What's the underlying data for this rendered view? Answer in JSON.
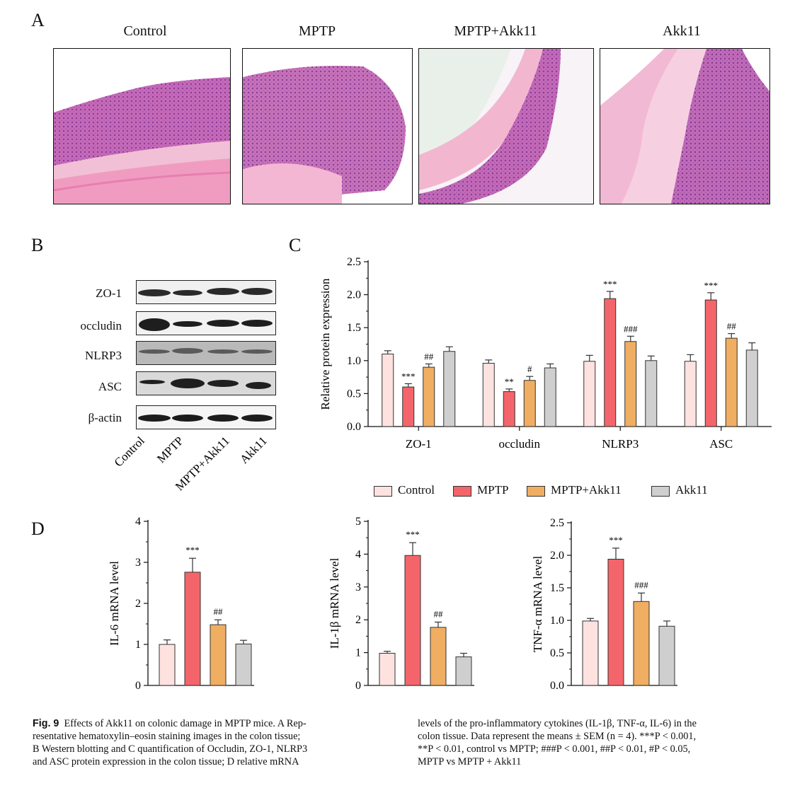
{
  "panels": {
    "a": "A",
    "b": "B",
    "c": "C",
    "d": "D"
  },
  "groups": [
    "Control",
    "MPTP",
    "MPTP+Akk11",
    "Akk11"
  ],
  "group_colors": [
    "#fde2e0",
    "#f4656b",
    "#f0ae62",
    "#cfcfcf"
  ],
  "histology_labels": [
    "Control",
    "MPTP",
    "MPTP+Akk11",
    "Akk11"
  ],
  "western": {
    "bands": [
      "ZO-1",
      "occludin",
      "NLRP3",
      "ASC",
      "β-actin"
    ],
    "lanes": [
      "Control",
      "MPTP",
      "MPTP+Akk11",
      "Akk11"
    ]
  },
  "legend": [
    "Control",
    "MPTP",
    "MPTP+Akk11",
    "Akk11"
  ],
  "chart_data": [
    {
      "id": "C",
      "type": "bar",
      "categories": [
        "ZO-1",
        "occludin",
        "NLRP3",
        "ASC"
      ],
      "series": [
        {
          "name": "Control",
          "values": [
            1.1,
            0.96,
            0.99,
            0.99
          ],
          "errors": [
            0.05,
            0.05,
            0.09,
            0.1
          ]
        },
        {
          "name": "MPTP",
          "values": [
            0.6,
            0.53,
            1.94,
            1.92
          ],
          "errors": [
            0.05,
            0.04,
            0.11,
            0.11
          ]
        },
        {
          "name": "MPTP+Akk11",
          "values": [
            0.9,
            0.7,
            1.29,
            1.34
          ],
          "errors": [
            0.05,
            0.06,
            0.08,
            0.07
          ]
        },
        {
          "name": "Akk11",
          "values": [
            1.14,
            0.89,
            1.0,
            1.16
          ],
          "errors": [
            0.07,
            0.06,
            0.07,
            0.11
          ]
        }
      ],
      "annotations": [
        {
          "category": "ZO-1",
          "series": "MPTP",
          "text": "***"
        },
        {
          "category": "ZO-1",
          "series": "MPTP+Akk11",
          "text": "##"
        },
        {
          "category": "occludin",
          "series": "MPTP",
          "text": "**"
        },
        {
          "category": "occludin",
          "series": "MPTP+Akk11",
          "text": "#"
        },
        {
          "category": "NLRP3",
          "series": "MPTP",
          "text": "***"
        },
        {
          "category": "NLRP3",
          "series": "MPTP+Akk11",
          "text": "###"
        },
        {
          "category": "ASC",
          "series": "MPTP",
          "text": "***"
        },
        {
          "category": "ASC",
          "series": "MPTP+Akk11",
          "text": "##"
        }
      ],
      "ylabel": "Relative protein expression",
      "ylim": [
        0,
        2.5
      ],
      "yticks": [
        "0.0",
        "0.5",
        "1.0",
        "1.5",
        "2.0",
        "2.5"
      ],
      "legend_position": "bottom"
    },
    {
      "id": "D1",
      "type": "bar",
      "categories": [
        "Control",
        "MPTP",
        "MPTP+Akk11",
        "Akk11"
      ],
      "values": [
        1.0,
        2.76,
        1.48,
        1.01
      ],
      "errors": [
        0.11,
        0.34,
        0.12,
        0.09
      ],
      "annotations": [
        {
          "index": 1,
          "text": "***"
        },
        {
          "index": 2,
          "text": "##"
        }
      ],
      "ylabel": "IL-6 mRNA level",
      "ylim": [
        0,
        4
      ],
      "yticks": [
        "0",
        "1",
        "2",
        "3",
        "4"
      ]
    },
    {
      "id": "D2",
      "type": "bar",
      "categories": [
        "Control",
        "MPTP",
        "MPTP+Akk11",
        "Akk11"
      ],
      "values": [
        0.98,
        3.96,
        1.77,
        0.87
      ],
      "errors": [
        0.06,
        0.39,
        0.16,
        0.11
      ],
      "annotations": [
        {
          "index": 1,
          "text": "***"
        },
        {
          "index": 2,
          "text": "##"
        }
      ],
      "ylabel": "IL-1β mRNA level",
      "ylim": [
        0,
        5
      ],
      "yticks": [
        "0",
        "1",
        "2",
        "3",
        "4",
        "5"
      ]
    },
    {
      "id": "D3",
      "type": "bar",
      "categories": [
        "Control",
        "MPTP",
        "MPTP+Akk11",
        "Akk11"
      ],
      "values": [
        0.99,
        1.94,
        1.29,
        0.91
      ],
      "errors": [
        0.04,
        0.17,
        0.13,
        0.08
      ],
      "annotations": [
        {
          "index": 1,
          "text": "***"
        },
        {
          "index": 2,
          "text": "###"
        }
      ],
      "ylabel": "TNF-α mRNA level",
      "ylim": [
        0,
        2.5
      ],
      "yticks": [
        "0.0",
        "0.5",
        "1.0",
        "1.5",
        "2.0",
        "2.5"
      ]
    }
  ],
  "caption": {
    "fig_label": "Fig. 9",
    "left_lines": [
      "Effects of Akk11 on colonic damage in MPTP mice. A Rep-",
      "resentative hematoxylin–eosin staining images in the colon tissue;",
      "B Western blotting and C quantification of Occludin, ZO-1, NLRP3",
      "and ASC protein expression in the colon tissue; D relative mRNA"
    ],
    "right_lines": [
      "levels of the pro-inflammatory cytokines (IL-1β, TNF-α, IL-6) in the",
      "colon tissue. Data represent the means ± SEM (n = 4). ***P < 0.001,",
      "**P < 0.01, control vs MPTP; ###P < 0.001, ##P < 0.01, #P < 0.05,",
      "MPTP vs MPTP + Akk11"
    ]
  }
}
